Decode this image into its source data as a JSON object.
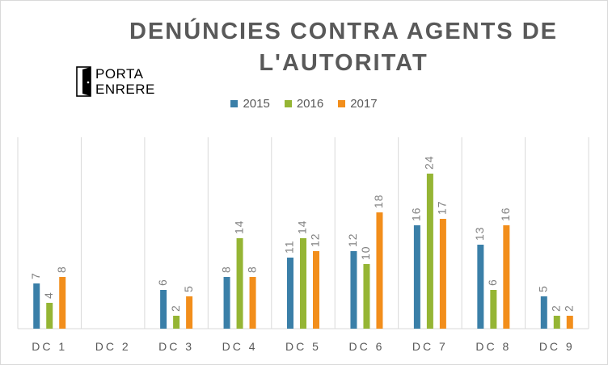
{
  "chart_data": {
    "type": "bar",
    "title": "DENÚNCIES CONTRA AGENTS DE L'AUTORITAT",
    "categories": [
      "DC 1",
      "DC 2",
      "DC 3",
      "DC 4",
      "DC 5",
      "DC 6",
      "DC 7",
      "DC 8",
      "DC 9"
    ],
    "series": [
      {
        "name": "2015",
        "color": "#3a7fa8",
        "values": [
          7,
          null,
          6,
          8,
          11,
          12,
          16,
          13,
          5
        ]
      },
      {
        "name": "2016",
        "color": "#95b534",
        "values": [
          4,
          null,
          2,
          14,
          14,
          10,
          24,
          6,
          2
        ]
      },
      {
        "name": "2017",
        "color": "#f28e1b",
        "values": [
          8,
          null,
          5,
          8,
          12,
          18,
          17,
          16,
          2
        ]
      }
    ],
    "ylim": [
      0,
      30
    ],
    "grid": false,
    "legend": "top-center",
    "data_labels": true
  },
  "logo": {
    "line1": "PORTA",
    "line2": "ENRERE"
  }
}
